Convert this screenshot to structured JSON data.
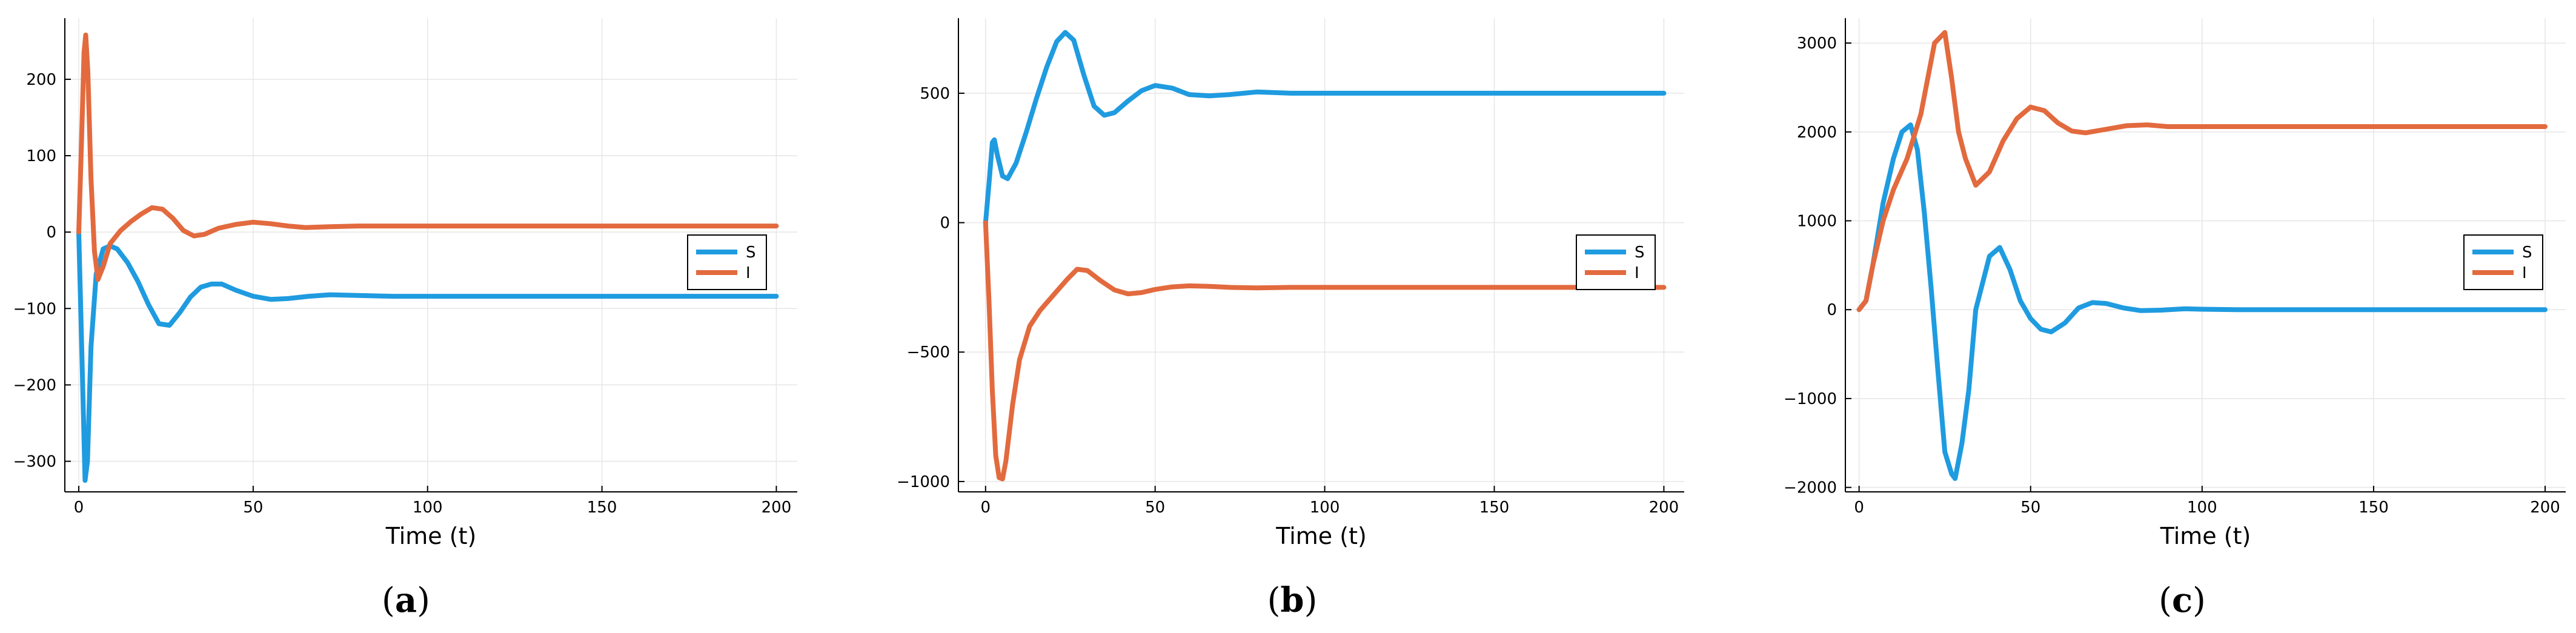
{
  "chart_data": [
    {
      "type": "line",
      "panel_label": "a",
      "xlabel": "Time (t)",
      "ylabel": "",
      "xlim": [
        -4,
        206
      ],
      "ylim": [
        -340,
        280
      ],
      "xticks": [
        0,
        50,
        100,
        150,
        200
      ],
      "yticks": [
        -300,
        -200,
        -100,
        0,
        100,
        200
      ],
      "grid": true,
      "legend_position": "right",
      "series": [
        {
          "name": "S",
          "color": "#1f9be0",
          "points": [
            [
              0,
              0
            ],
            [
              1,
              -180
            ],
            [
              1.8,
              -325
            ],
            [
              2.5,
              -300
            ],
            [
              3.5,
              -150
            ],
            [
              5,
              -55
            ],
            [
              7,
              -22
            ],
            [
              9,
              -18
            ],
            [
              11,
              -22
            ],
            [
              14,
              -40
            ],
            [
              17,
              -65
            ],
            [
              20,
              -95
            ],
            [
              23,
              -120
            ],
            [
              26,
              -122
            ],
            [
              29,
              -105
            ],
            [
              32,
              -85
            ],
            [
              35,
              -72
            ],
            [
              38,
              -68
            ],
            [
              41,
              -68
            ],
            [
              45,
              -76
            ],
            [
              50,
              -84
            ],
            [
              55,
              -88
            ],
            [
              60,
              -87
            ],
            [
              66,
              -84
            ],
            [
              72,
              -82
            ],
            [
              80,
              -83
            ],
            [
              90,
              -84
            ],
            [
              100,
              -84
            ],
            [
              120,
              -84
            ],
            [
              150,
              -84
            ],
            [
              175,
              -84
            ],
            [
              200,
              -84
            ]
          ]
        },
        {
          "name": "I",
          "color": "#e26a3e",
          "points": [
            [
              0,
              0
            ],
            [
              0.8,
              120
            ],
            [
              1.5,
              235
            ],
            [
              2,
              258
            ],
            [
              2.6,
              210
            ],
            [
              3.5,
              70
            ],
            [
              4.5,
              -25
            ],
            [
              5.5,
              -62
            ],
            [
              7,
              -45
            ],
            [
              9,
              -15
            ],
            [
              12,
              2
            ],
            [
              15,
              14
            ],
            [
              18,
              24
            ],
            [
              21,
              32
            ],
            [
              24,
              30
            ],
            [
              27,
              18
            ],
            [
              30,
              2
            ],
            [
              33,
              -5
            ],
            [
              36,
              -3
            ],
            [
              40,
              5
            ],
            [
              45,
              10
            ],
            [
              50,
              13
            ],
            [
              55,
              11
            ],
            [
              60,
              8
            ],
            [
              65,
              6
            ],
            [
              72,
              7
            ],
            [
              80,
              8
            ],
            [
              90,
              8
            ],
            [
              100,
              8
            ],
            [
              120,
              8
            ],
            [
              150,
              8
            ],
            [
              200,
              8
            ]
          ]
        }
      ]
    },
    {
      "type": "line",
      "panel_label": "b",
      "xlabel": "Time (t)",
      "ylabel": "",
      "xlim": [
        -8,
        206
      ],
      "ylim": [
        -1040,
        790
      ],
      "xticks": [
        0,
        50,
        100,
        150,
        200
      ],
      "yticks": [
        -1000,
        -500,
        0,
        500
      ],
      "grid": true,
      "legend_position": "right",
      "series": [
        {
          "name": "S",
          "color": "#1f9be0",
          "points": [
            [
              0,
              0
            ],
            [
              1,
              150
            ],
            [
              2,
              310
            ],
            [
              2.6,
              320
            ],
            [
              3.5,
              260
            ],
            [
              5,
              180
            ],
            [
              6.5,
              170
            ],
            [
              9,
              230
            ],
            [
              12,
              350
            ],
            [
              15,
              480
            ],
            [
              18,
              600
            ],
            [
              21,
              700
            ],
            [
              23.5,
              735
            ],
            [
              26,
              705
            ],
            [
              29,
              570
            ],
            [
              32,
              450
            ],
            [
              35,
              415
            ],
            [
              38,
              425
            ],
            [
              42,
              470
            ],
            [
              46,
              510
            ],
            [
              50,
              530
            ],
            [
              55,
              520
            ],
            [
              60,
              495
            ],
            [
              66,
              490
            ],
            [
              72,
              495
            ],
            [
              80,
              505
            ],
            [
              90,
              500
            ],
            [
              100,
              500
            ],
            [
              150,
              500
            ],
            [
              200,
              500
            ]
          ]
        },
        {
          "name": "I",
          "color": "#e26a3e",
          "points": [
            [
              0,
              0
            ],
            [
              1,
              -300
            ],
            [
              2,
              -650
            ],
            [
              3,
              -900
            ],
            [
              4,
              -985
            ],
            [
              5,
              -990
            ],
            [
              6,
              -920
            ],
            [
              8,
              -700
            ],
            [
              10,
              -530
            ],
            [
              13,
              -400
            ],
            [
              16,
              -340
            ],
            [
              20,
              -280
            ],
            [
              24,
              -220
            ],
            [
              27,
              -180
            ],
            [
              30,
              -185
            ],
            [
              34,
              -225
            ],
            [
              38,
              -260
            ],
            [
              42,
              -275
            ],
            [
              46,
              -270
            ],
            [
              50,
              -258
            ],
            [
              55,
              -248
            ],
            [
              60,
              -244
            ],
            [
              66,
              -246
            ],
            [
              72,
              -250
            ],
            [
              80,
              -252
            ],
            [
              90,
              -250
            ],
            [
              100,
              -250
            ],
            [
              150,
              -250
            ],
            [
              200,
              -250
            ]
          ]
        }
      ]
    },
    {
      "type": "line",
      "panel_label": "c",
      "xlabel": "Time (t)",
      "ylabel": "",
      "xlim": [
        -4,
        206
      ],
      "ylim": [
        -2050,
        3280
      ],
      "xticks": [
        0,
        50,
        100,
        150,
        200
      ],
      "yticks": [
        -2000,
        -1000,
        0,
        1000,
        2000,
        3000
      ],
      "grid": true,
      "legend_position": "right",
      "series": [
        {
          "name": "S",
          "color": "#1f9be0",
          "points": [
            [
              0,
              0
            ],
            [
              2,
              100
            ],
            [
              4,
              500
            ],
            [
              7,
              1200
            ],
            [
              10,
              1700
            ],
            [
              12.5,
              2000
            ],
            [
              15,
              2080
            ],
            [
              17,
              1800
            ],
            [
              19,
              1100
            ],
            [
              21,
              250
            ],
            [
              23,
              -700
            ],
            [
              25,
              -1600
            ],
            [
              27,
              -1850
            ],
            [
              28,
              -1900
            ],
            [
              30,
              -1500
            ],
            [
              32,
              -900
            ],
            [
              34,
              0
            ],
            [
              38,
              600
            ],
            [
              41,
              700
            ],
            [
              44,
              450
            ],
            [
              47,
              100
            ],
            [
              50,
              -100
            ],
            [
              53,
              -220
            ],
            [
              56,
              -250
            ],
            [
              60,
              -150
            ],
            [
              64,
              20
            ],
            [
              68,
              80
            ],
            [
              72,
              70
            ],
            [
              77,
              20
            ],
            [
              82,
              -10
            ],
            [
              88,
              -5
            ],
            [
              95,
              10
            ],
            [
              100,
              5
            ],
            [
              110,
              0
            ],
            [
              150,
              0
            ],
            [
              200,
              0
            ]
          ]
        },
        {
          "name": "I",
          "color": "#e26a3e",
          "points": [
            [
              0,
              0
            ],
            [
              2,
              100
            ],
            [
              4,
              500
            ],
            [
              7,
              1000
            ],
            [
              10,
              1350
            ],
            [
              14,
              1700
            ],
            [
              18,
              2200
            ],
            [
              22,
              3000
            ],
            [
              25,
              3120
            ],
            [
              27,
              2600
            ],
            [
              29,
              2000
            ],
            [
              31,
              1700
            ],
            [
              34,
              1400
            ],
            [
              38,
              1550
            ],
            [
              42,
              1900
            ],
            [
              46,
              2150
            ],
            [
              50,
              2280
            ],
            [
              54,
              2240
            ],
            [
              58,
              2100
            ],
            [
              62,
              2010
            ],
            [
              66,
              1990
            ],
            [
              72,
              2030
            ],
            [
              78,
              2070
            ],
            [
              84,
              2080
            ],
            [
              90,
              2060
            ],
            [
              100,
              2060
            ],
            [
              110,
              2060
            ],
            [
              150,
              2060
            ],
            [
              200,
              2060
            ]
          ]
        }
      ]
    }
  ]
}
